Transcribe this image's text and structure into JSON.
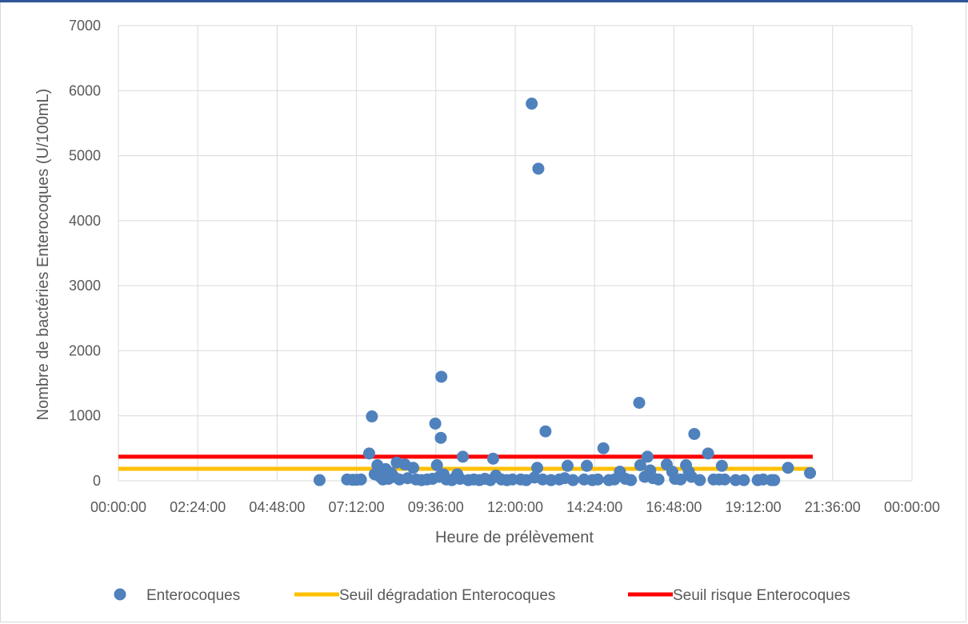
{
  "chart_data": {
    "type": "scatter",
    "title": "",
    "xlabel": "Heure de prélèvement",
    "ylabel": "Nombre de bactéries Enterocoques (U/100mL)",
    "xlim": [
      "00:00:00",
      "24:00:00"
    ],
    "ylim": [
      0,
      7000
    ],
    "grid": true,
    "legend_position": "bottom",
    "x_tick_labels": [
      "00:00:00",
      "02:24:00",
      "04:48:00",
      "07:12:00",
      "09:36:00",
      "12:00:00",
      "14:24:00",
      "16:48:00",
      "19:12:00",
      "21:36:00",
      "00:00:00"
    ],
    "y_tick_labels": [
      "0",
      "1000",
      "2000",
      "3000",
      "4000",
      "5000",
      "6000",
      "7000"
    ],
    "series": [
      {
        "name": "Enterocoques",
        "kind": "scatter",
        "color": "#4f81bd",
        "points": [
          [
            "06:05",
            10
          ],
          [
            "06:55",
            20
          ],
          [
            "07:05",
            15
          ],
          [
            "07:12",
            15
          ],
          [
            "07:20",
            20
          ],
          [
            "07:35",
            420
          ],
          [
            "07:40",
            990
          ],
          [
            "07:45",
            100
          ],
          [
            "07:50",
            240
          ],
          [
            "07:55",
            60
          ],
          [
            "08:00",
            20
          ],
          [
            "08:05",
            180
          ],
          [
            "08:10",
            30
          ],
          [
            "08:15",
            120
          ],
          [
            "08:20",
            60
          ],
          [
            "08:25",
            280
          ],
          [
            "08:30",
            20
          ],
          [
            "08:40",
            250
          ],
          [
            "08:45",
            40
          ],
          [
            "08:55",
            200
          ],
          [
            "09:00",
            20
          ],
          [
            "09:10",
            10
          ],
          [
            "09:20",
            20
          ],
          [
            "09:30",
            30
          ],
          [
            "09:35",
            880
          ],
          [
            "09:38",
            240
          ],
          [
            "09:42",
            60
          ],
          [
            "09:45",
            660
          ],
          [
            "09:46",
            1600
          ],
          [
            "09:50",
            100
          ],
          [
            "09:55",
            20
          ],
          [
            "10:05",
            10
          ],
          [
            "10:10",
            40
          ],
          [
            "10:15",
            100
          ],
          [
            "10:20",
            30
          ],
          [
            "10:25",
            370
          ],
          [
            "10:35",
            10
          ],
          [
            "10:45",
            20
          ],
          [
            "10:55",
            10
          ],
          [
            "11:05",
            30
          ],
          [
            "11:15",
            10
          ],
          [
            "11:20",
            340
          ],
          [
            "11:25",
            80
          ],
          [
            "11:35",
            20
          ],
          [
            "11:45",
            10
          ],
          [
            "11:55",
            20
          ],
          [
            "12:10",
            20
          ],
          [
            "12:20",
            10
          ],
          [
            "12:30",
            5800
          ],
          [
            "12:35",
            50
          ],
          [
            "12:40",
            200
          ],
          [
            "12:42",
            4800
          ],
          [
            "12:50",
            20
          ],
          [
            "12:55",
            760
          ],
          [
            "13:05",
            10
          ],
          [
            "13:20",
            20
          ],
          [
            "13:30",
            40
          ],
          [
            "13:35",
            230
          ],
          [
            "13:45",
            10
          ],
          [
            "14:05",
            20
          ],
          [
            "14:10",
            230
          ],
          [
            "14:20",
            10
          ],
          [
            "14:30",
            20
          ],
          [
            "14:40",
            500
          ],
          [
            "14:50",
            10
          ],
          [
            "15:00",
            20
          ],
          [
            "15:10",
            140
          ],
          [
            "15:20",
            30
          ],
          [
            "15:30",
            10
          ],
          [
            "15:45",
            1200
          ],
          [
            "15:47",
            240
          ],
          [
            "15:55",
            60
          ],
          [
            "16:00",
            370
          ],
          [
            "16:05",
            160
          ],
          [
            "16:10",
            40
          ],
          [
            "16:20",
            20
          ],
          [
            "16:35",
            250
          ],
          [
            "16:45",
            140
          ],
          [
            "16:50",
            30
          ],
          [
            "17:00",
            20
          ],
          [
            "17:10",
            240
          ],
          [
            "17:15",
            140
          ],
          [
            "17:20",
            60
          ],
          [
            "17:25",
            720
          ],
          [
            "17:35",
            10
          ],
          [
            "17:50",
            420
          ],
          [
            "18:00",
            20
          ],
          [
            "18:10",
            20
          ],
          [
            "18:15",
            230
          ],
          [
            "18:20",
            20
          ],
          [
            "18:40",
            10
          ],
          [
            "18:55",
            10
          ],
          [
            "19:20",
            10
          ],
          [
            "19:30",
            20
          ],
          [
            "19:45",
            10
          ],
          [
            "19:50",
            10
          ],
          [
            "20:15",
            200
          ],
          [
            "20:55",
            120
          ]
        ]
      },
      {
        "name": "Seuil dégradation Enterocoques",
        "kind": "line",
        "color": "#ffc000",
        "points": [
          [
            "00:00",
            185
          ],
          [
            "21:00",
            185
          ]
        ]
      },
      {
        "name": "Seuil risque Enterocoques",
        "kind": "line",
        "color": "#ff0000",
        "points": [
          [
            "00:00",
            370
          ],
          [
            "21:00",
            370
          ]
        ]
      }
    ]
  }
}
